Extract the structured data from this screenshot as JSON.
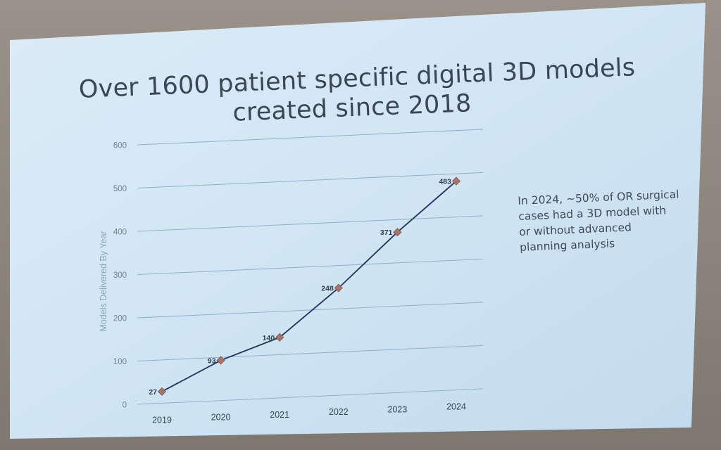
{
  "slide": {
    "title_line_1": "Over 1600 patient specific digital 3D models",
    "title_line_2": "created since 2018",
    "note": "In 2024, ~50% of OR surgical cases had a 3D model with or without advanced planning analysis"
  },
  "colors": {
    "slide_background": "#d2e6f4",
    "line": "#20345c",
    "marker": "#a77468",
    "gridline": "#8fb0cc",
    "axis_text": "#6e8296",
    "ylabel_text": "#8aa7c0"
  },
  "chart_data": {
    "type": "line",
    "title": "",
    "xlabel": "",
    "ylabel": "Models Delivered By Year",
    "categories": [
      "2019",
      "2020",
      "2021",
      "2022",
      "2023",
      "2024"
    ],
    "series": [
      {
        "values": [
          27,
          93,
          140,
          248,
          371,
          483
        ],
        "data_labels": [
          "27",
          "93",
          "140",
          "248",
          "371",
          "483"
        ],
        "marker": "diamond"
      }
    ],
    "ylim": [
      0,
      600
    ],
    "yticks": [
      "0",
      "100",
      "200",
      "300",
      "400",
      "500",
      "600"
    ],
    "grid": true,
    "legend": "none"
  }
}
